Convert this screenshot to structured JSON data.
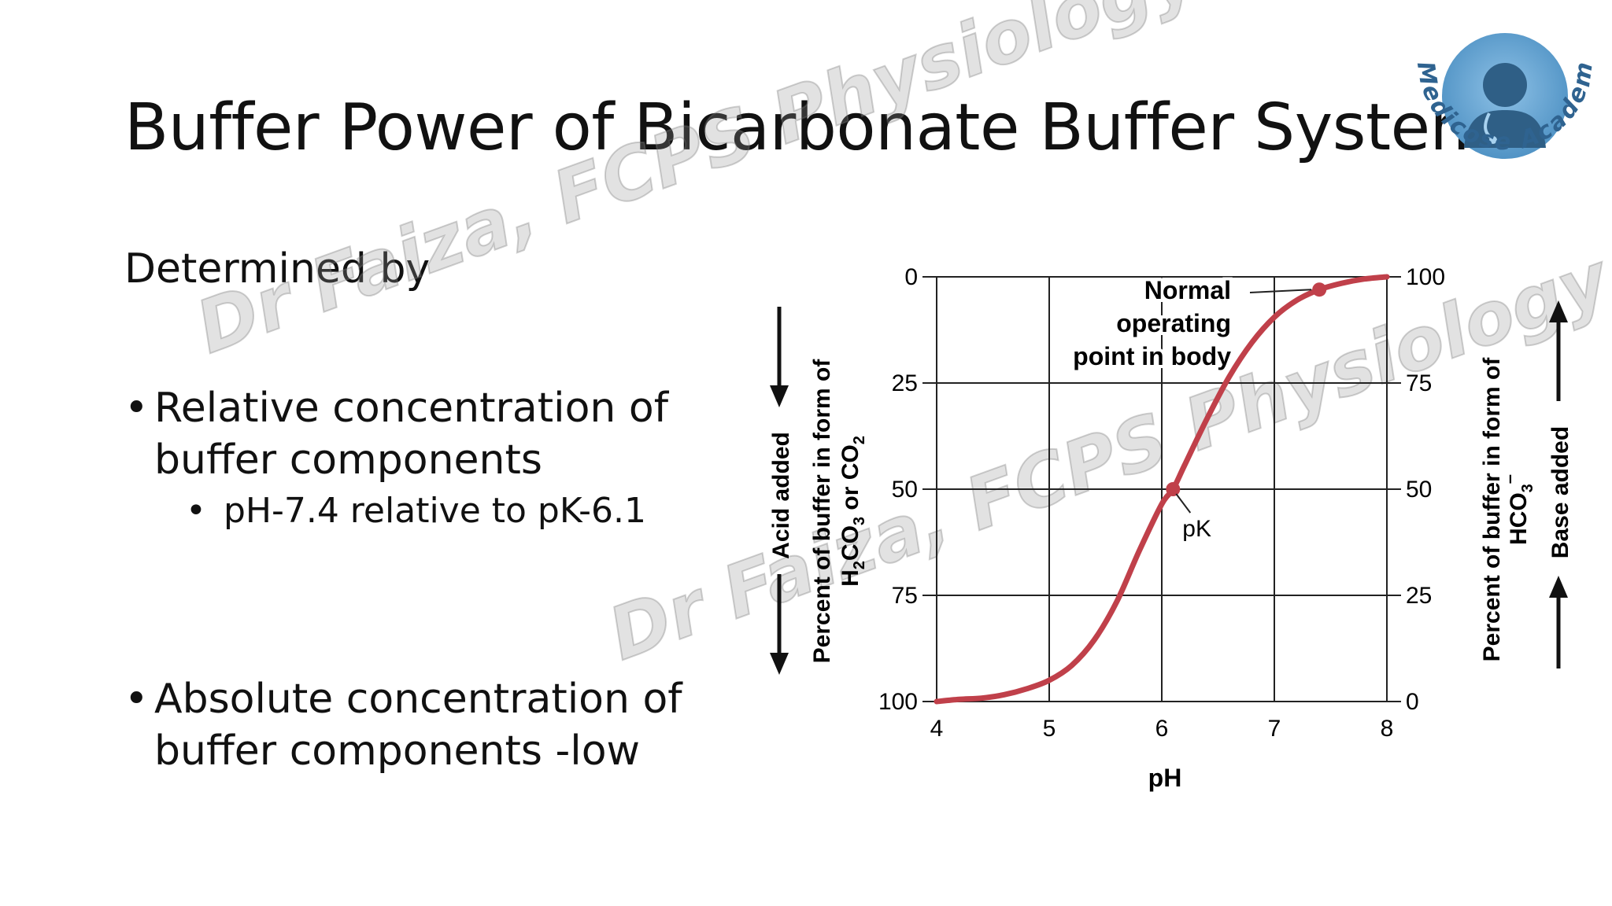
{
  "slide": {
    "title": "Buffer Power of Bicarbonate Buffer System",
    "subhead": "Determined by",
    "bullets": [
      {
        "marker": "•",
        "line1": "Relative concentration of",
        "line2": "buffer components"
      },
      {
        "marker": "•",
        "line1": "Absolute concentration of",
        "line2": "buffer components -low"
      }
    ],
    "sub_bullet": {
      "marker": "•",
      "text": "pH-7.4 relative to pK-6.1"
    }
  },
  "watermarks": [
    "Dr Faiza, FCPS Physiology",
    "Dr Faiza, FCPS Physiology"
  ],
  "logo": {
    "text": "Medicose Academics",
    "icon": "doctor-avatar-icon",
    "ring_color": "#3f7fb0"
  },
  "chart_data": {
    "type": "line",
    "xlabel": "pH",
    "x_ticks": [
      "4",
      "5",
      "6",
      "7",
      "8"
    ],
    "xlim": [
      4,
      8
    ],
    "left_axis": {
      "label_line1": "Percent of buffer in form of",
      "label_line2_parts": [
        "H",
        "2",
        "CO",
        "3",
        " or CO",
        "2"
      ],
      "ticks": [
        "0",
        "25",
        "50",
        "75",
        "100"
      ],
      "range": [
        100,
        0
      ]
    },
    "right_axis": {
      "label_line1": "Percent of buffer in form of",
      "label_line2_parts": [
        "HCO",
        "3",
        "–"
      ],
      "ticks": [
        "100",
        "75",
        "50",
        "25",
        "0"
      ],
      "range": [
        0,
        100
      ]
    },
    "arrows": {
      "left": "Acid added",
      "right": "Base added"
    },
    "grid": true,
    "series": [
      {
        "color": "#c0404a",
        "x": [
          4.0,
          4.2,
          4.4,
          4.6,
          4.8,
          5.0,
          5.2,
          5.4,
          5.6,
          5.8,
          6.0,
          6.1,
          6.2,
          6.4,
          6.6,
          6.8,
          7.0,
          7.2,
          7.4,
          7.6,
          7.8,
          8.0
        ],
        "y": [
          0.0,
          0.5,
          0.8,
          1.6,
          3.0,
          5.0,
          8.5,
          14.5,
          23.5,
          35.5,
          46.5,
          50.0,
          55.5,
          66.5,
          76.5,
          84.5,
          90.5,
          94.5,
          97.0,
          98.5,
          99.5,
          100.0
        ]
      }
    ],
    "annotations": [
      {
        "label_lines": [
          "Normal",
          "operating",
          "point in body"
        ],
        "x": 7.4,
        "y": 97.0
      },
      {
        "label": "pK",
        "x": 6.1,
        "y": 50.0
      }
    ]
  }
}
